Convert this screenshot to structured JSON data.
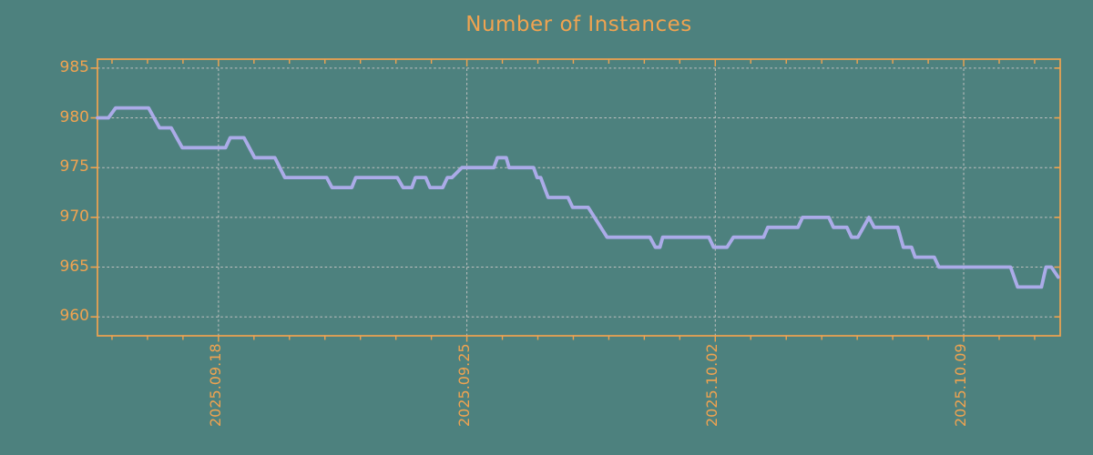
{
  "chart_data": {
    "type": "line",
    "title": "Number of Instances",
    "grid": {
      "horizontal_dashed": true,
      "vertical_dashed_at_major_x": true
    },
    "legend": "none",
    "colors": {
      "background": "#4D817E",
      "axis": "#F0A350",
      "title": "#F0A350",
      "grid": "#C0C0C0",
      "line": "#ABABE8"
    },
    "x_axis": {
      "unit": "days relative to 2025.09.18",
      "xlim_days": [
        -3.41,
        23.72
      ],
      "minor_tick_every_days": 1,
      "major_ticks": [
        {
          "day": 0,
          "label": "2025.09.18"
        },
        {
          "day": 7,
          "label": "2025.09.25"
        },
        {
          "day": 14,
          "label": "2025.10.02"
        },
        {
          "day": 21,
          "label": "2025.10.09"
        }
      ]
    },
    "y_axis": {
      "ticks": [
        960,
        965,
        970,
        975,
        980,
        985
      ],
      "ylim": [
        958.1,
        985.9
      ]
    },
    "series": [
      {
        "name": "instances",
        "color": "#ABABE8",
        "points": [
          [
            -3.41,
            980
          ],
          [
            -3.1,
            980
          ],
          [
            -2.9,
            981
          ],
          [
            -1.97,
            981
          ],
          [
            -1.66,
            979
          ],
          [
            -1.33,
            979
          ],
          [
            -1.02,
            977
          ],
          [
            0.2,
            977
          ],
          [
            0.33,
            978
          ],
          [
            0.72,
            978
          ],
          [
            1.02,
            976
          ],
          [
            1.59,
            976
          ],
          [
            1.87,
            974
          ],
          [
            3.05,
            974
          ],
          [
            3.2,
            973
          ],
          [
            3.76,
            973
          ],
          [
            3.87,
            974
          ],
          [
            5.04,
            974
          ],
          [
            5.2,
            973
          ],
          [
            5.45,
            973
          ],
          [
            5.55,
            974
          ],
          [
            5.84,
            974
          ],
          [
            5.96,
            973
          ],
          [
            6.32,
            973
          ],
          [
            6.45,
            974
          ],
          [
            6.58,
            974
          ],
          [
            6.86,
            975
          ],
          [
            7.76,
            975
          ],
          [
            7.86,
            976
          ],
          [
            8.11,
            976
          ],
          [
            8.19,
            975
          ],
          [
            8.88,
            975
          ],
          [
            8.98,
            974
          ],
          [
            9.08,
            974
          ],
          [
            9.29,
            972
          ],
          [
            9.85,
            972
          ],
          [
            9.98,
            971
          ],
          [
            10.42,
            971
          ],
          [
            10.95,
            968
          ],
          [
            12.16,
            968
          ],
          [
            12.31,
            967
          ],
          [
            12.44,
            967
          ],
          [
            12.52,
            968
          ],
          [
            13.82,
            968
          ],
          [
            13.95,
            967
          ],
          [
            14.33,
            967
          ],
          [
            14.51,
            968
          ],
          [
            15.36,
            968
          ],
          [
            15.48,
            969
          ],
          [
            16.33,
            969
          ],
          [
            16.46,
            970
          ],
          [
            17.2,
            970
          ],
          [
            17.33,
            969
          ],
          [
            17.71,
            969
          ],
          [
            17.84,
            968
          ],
          [
            18.02,
            968
          ],
          [
            18.33,
            970
          ],
          [
            18.48,
            969
          ],
          [
            19.14,
            969
          ],
          [
            19.3,
            967
          ],
          [
            19.53,
            967
          ],
          [
            19.63,
            966
          ],
          [
            20.17,
            966
          ],
          [
            20.3,
            965
          ],
          [
            22.32,
            965
          ],
          [
            22.52,
            963
          ],
          [
            23.19,
            963
          ],
          [
            23.32,
            965
          ],
          [
            23.47,
            965
          ],
          [
            23.66,
            964
          ]
        ]
      }
    ]
  }
}
